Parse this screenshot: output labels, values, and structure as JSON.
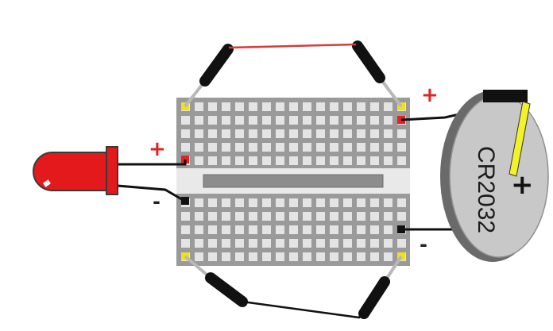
{
  "labels": {
    "led_plus": "+",
    "led_minus": "-",
    "battery_plus_terminal": "+",
    "battery_minus_terminal": "-",
    "battery_model": "CR2032",
    "battery_face_plus": "+"
  },
  "colors": {
    "led_body": "#e3191c",
    "battery_face": "#c8c8c8",
    "battery_clip": "#f2f22a",
    "breadboard_body": "#9a9a9a",
    "breadboard_hole": "#e4e4e4",
    "power_wire_top": "#d83a3a",
    "positive_marker": "#e32323",
    "corner_marker": "#f0e020"
  },
  "icons": {
    "led": "red-led-icon",
    "battery": "coin-cell-battery-icon",
    "breadboard": "mini-breadboard-icon"
  }
}
